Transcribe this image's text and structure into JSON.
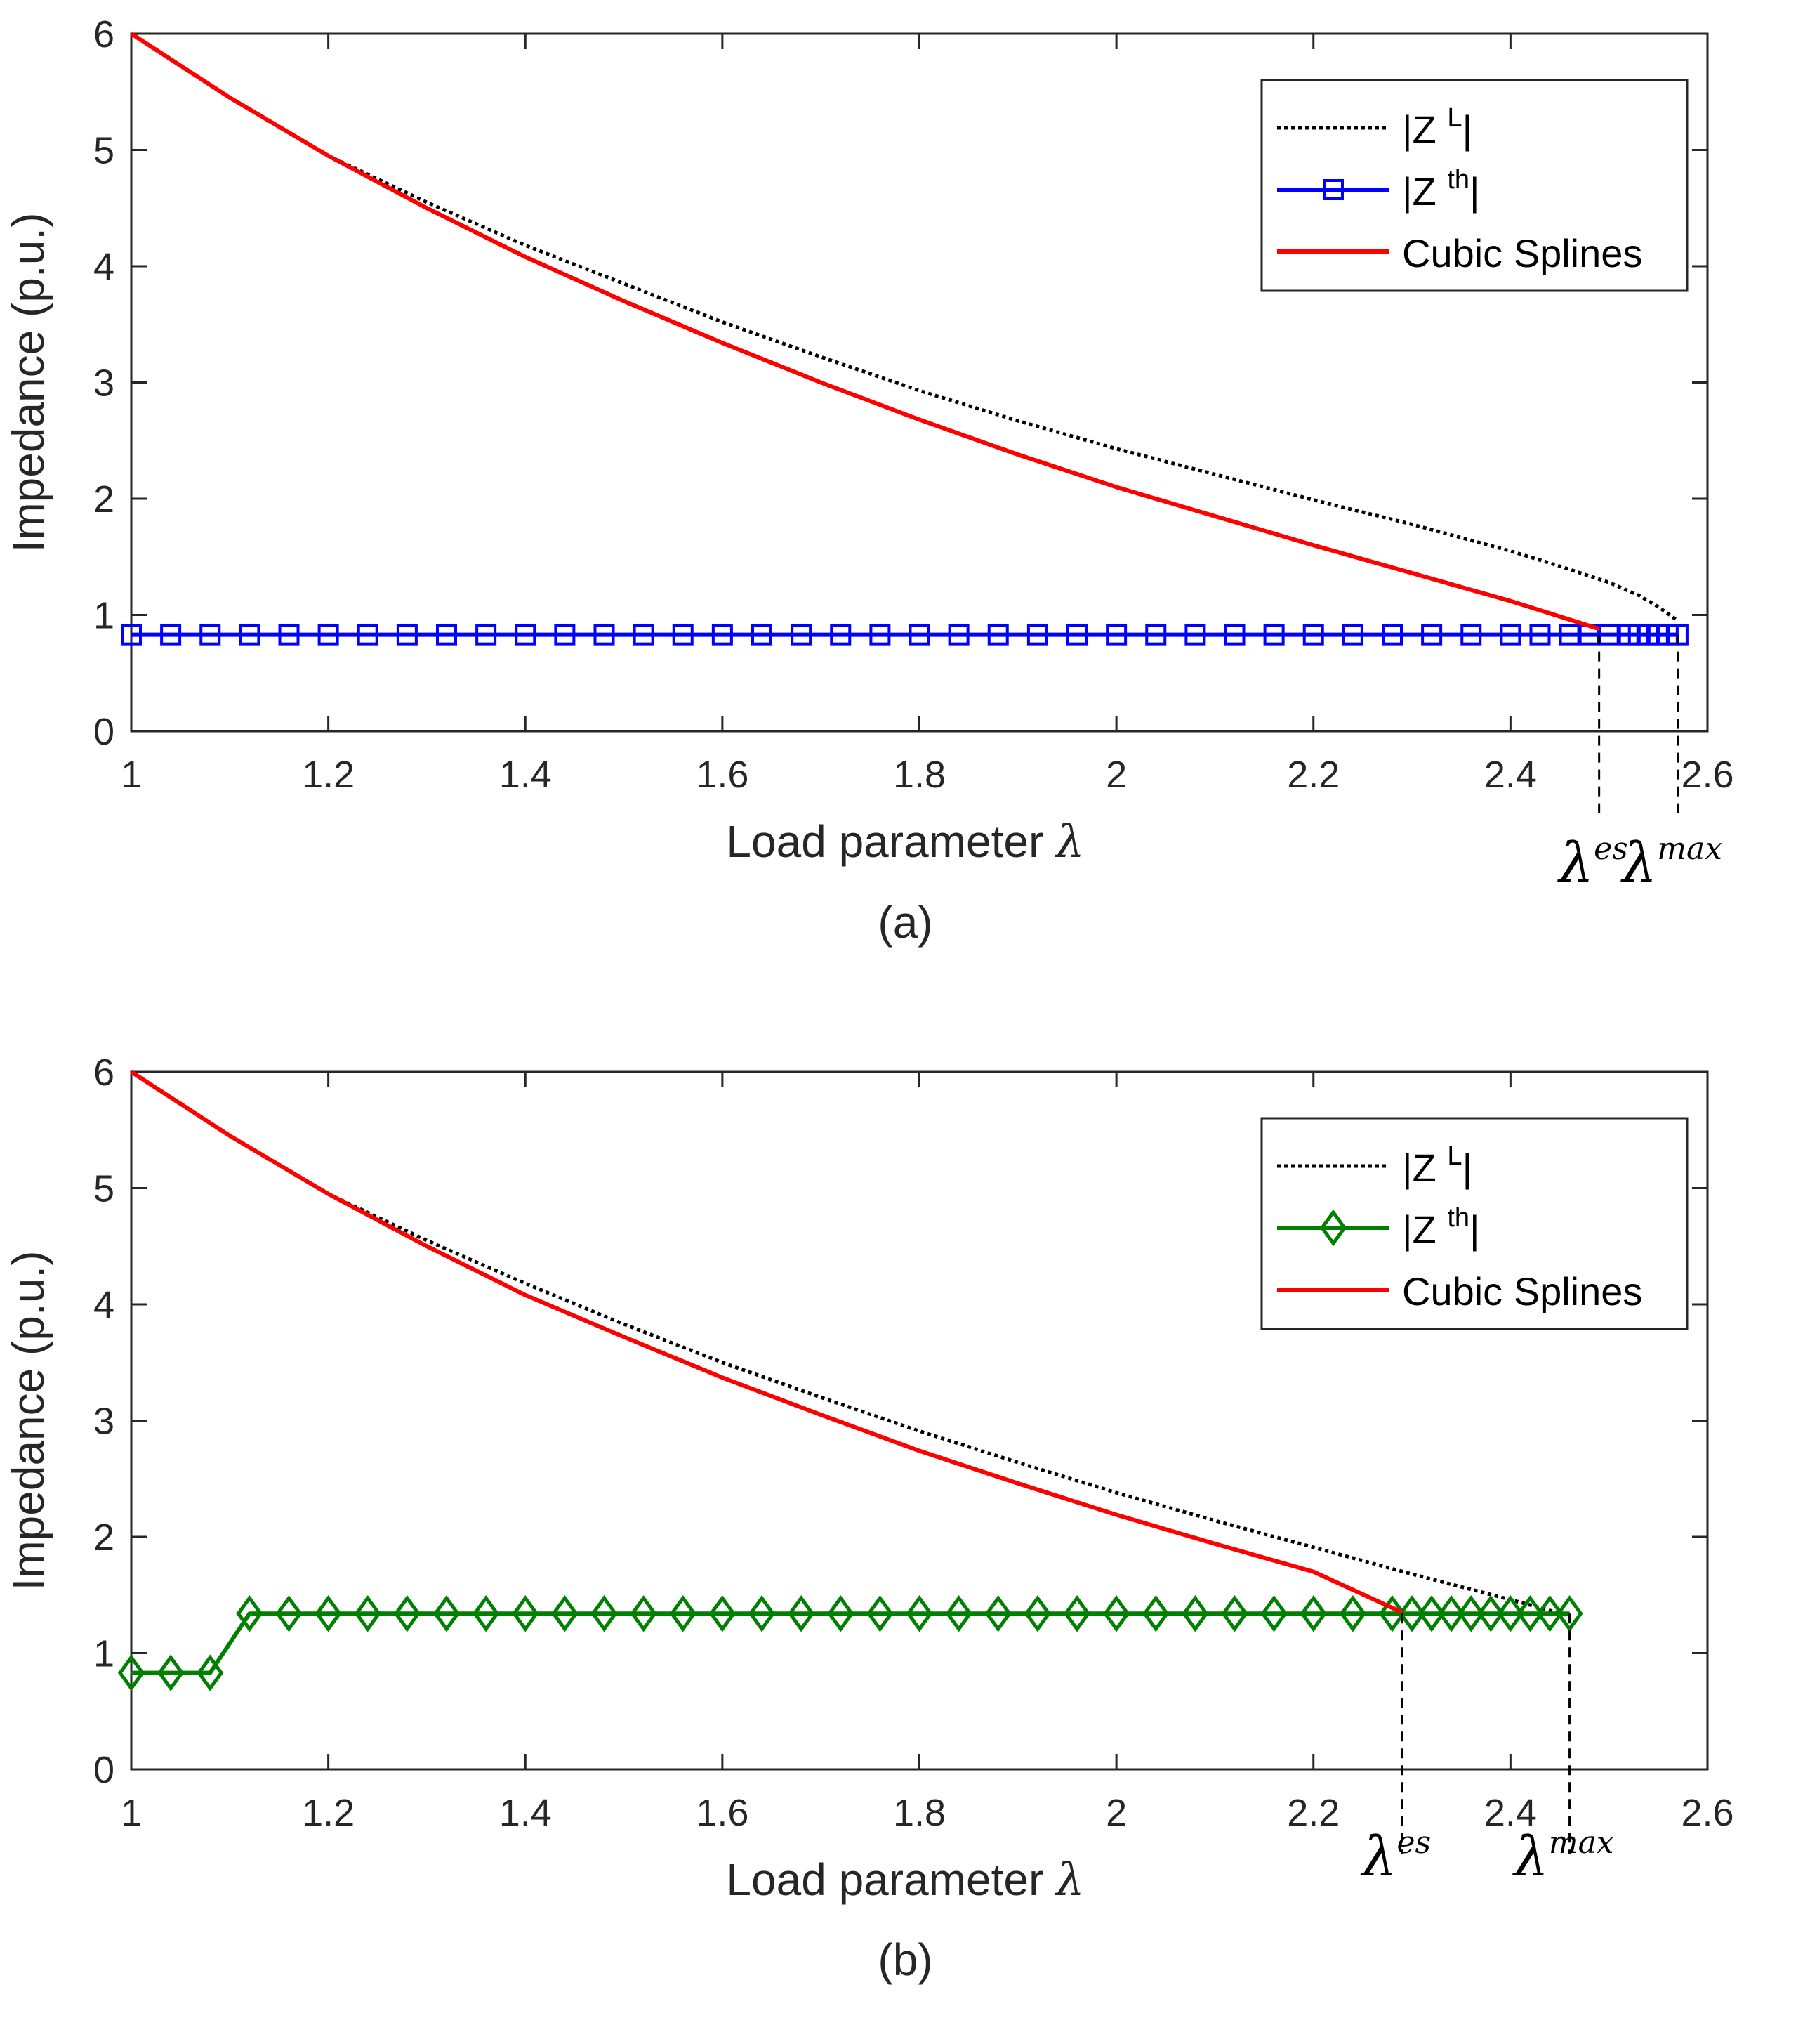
{
  "chart_data": [
    {
      "panel": "(a)",
      "type": "line",
      "caption": "(a)",
      "xlabel": "Load parameter",
      "xlabel_symbol": "λ",
      "ylabel": "Impedance (p.u.)",
      "xlim": [
        1,
        2.6
      ],
      "ylim": [
        0,
        6
      ],
      "xticks": [
        1,
        1.2,
        1.4,
        1.6,
        1.8,
        2,
        2.2,
        2.4,
        2.6
      ],
      "xtick_labels": [
        "1",
        "1.2",
        "1.4",
        "1.6",
        "1.8",
        "2",
        "2.2",
        "2.4",
        "2.6"
      ],
      "yticks": [
        0,
        1,
        2,
        3,
        4,
        5,
        6
      ],
      "ytick_labels": [
        "0",
        "1",
        "2",
        "3",
        "4",
        "5",
        "6"
      ],
      "legend_position": "top-right",
      "grid": false,
      "series": [
        {
          "name": "|Z L|",
          "legend": {
            "base": "|Z",
            "sup": "L",
            "close": "|"
          },
          "style": "dotted",
          "color": "#000000",
          "x": [
            1,
            1.1,
            1.2,
            1.3,
            1.4,
            1.5,
            1.6,
            1.7,
            1.8,
            1.9,
            2.0,
            2.1,
            2.2,
            2.3,
            2.4,
            2.45,
            2.5,
            2.53,
            2.55,
            2.57
          ],
          "y": [
            6.0,
            5.45,
            4.95,
            4.55,
            4.18,
            3.85,
            3.52,
            3.22,
            2.93,
            2.67,
            2.43,
            2.21,
            1.99,
            1.78,
            1.55,
            1.42,
            1.28,
            1.17,
            1.07,
            0.95
          ]
        },
        {
          "name": "|Z th|",
          "legend": {
            "base": "|Z",
            "sup": "th",
            "close": "|"
          },
          "style": "solid",
          "marker": "square",
          "color": "#0000ff",
          "x": [
            1,
            1.04,
            1.08,
            1.12,
            1.16,
            1.2,
            1.24,
            1.28,
            1.32,
            1.36,
            1.4,
            1.44,
            1.48,
            1.52,
            1.56,
            1.6,
            1.64,
            1.68,
            1.72,
            1.76,
            1.8,
            1.84,
            1.88,
            1.92,
            1.96,
            2.0,
            2.04,
            2.08,
            2.12,
            2.16,
            2.2,
            2.24,
            2.28,
            2.32,
            2.36,
            2.4,
            2.43,
            2.46,
            2.48,
            2.5,
            2.52,
            2.53,
            2.54,
            2.55,
            2.56,
            2.57
          ],
          "y": [
            0.83,
            0.83,
            0.83,
            0.83,
            0.83,
            0.83,
            0.83,
            0.83,
            0.83,
            0.83,
            0.83,
            0.83,
            0.83,
            0.83,
            0.83,
            0.83,
            0.83,
            0.83,
            0.83,
            0.83,
            0.83,
            0.83,
            0.83,
            0.83,
            0.83,
            0.83,
            0.83,
            0.83,
            0.83,
            0.83,
            0.83,
            0.83,
            0.83,
            0.83,
            0.83,
            0.83,
            0.83,
            0.83,
            0.83,
            0.83,
            0.83,
            0.83,
            0.83,
            0.83,
            0.83,
            0.83
          ]
        },
        {
          "name": "Cubic Splines",
          "legend": {
            "base": "Cubic Splines",
            "sup": "",
            "close": ""
          },
          "style": "solid",
          "color": "#ff0000",
          "x": [
            1,
            1.1,
            1.2,
            1.3,
            1.4,
            1.5,
            1.6,
            1.7,
            1.8,
            1.9,
            2.0,
            2.1,
            2.2,
            2.3,
            2.4,
            2.49
          ],
          "y": [
            6.0,
            5.45,
            4.95,
            4.5,
            4.08,
            3.7,
            3.34,
            3.0,
            2.68,
            2.38,
            2.1,
            1.85,
            1.6,
            1.36,
            1.12,
            0.88
          ]
        }
      ],
      "annotations": [
        {
          "symbol": "λ",
          "sup": "es",
          "sup_style": "italic",
          "x": 2.49
        },
        {
          "symbol": "λ",
          "sup": "max",
          "sup_style": "upright",
          "x": 2.57
        }
      ]
    },
    {
      "panel": "(b)",
      "type": "line",
      "caption": "(b)",
      "xlabel": "Load parameter",
      "xlabel_symbol": "λ",
      "ylabel": "Impedance (p.u.)",
      "xlim": [
        1,
        2.6
      ],
      "ylim": [
        0,
        6
      ],
      "xticks": [
        1,
        1.2,
        1.4,
        1.6,
        1.8,
        2,
        2.2,
        2.4,
        2.6
      ],
      "xtick_labels": [
        "1",
        "1.2",
        "1.4",
        "1.6",
        "1.8",
        "2",
        "2.2",
        "2.4",
        "2.6"
      ],
      "yticks": [
        0,
        1,
        2,
        3,
        4,
        5,
        6
      ],
      "ytick_labels": [
        "0",
        "1",
        "2",
        "3",
        "4",
        "5",
        "6"
      ],
      "legend_position": "top-right",
      "grid": false,
      "series": [
        {
          "name": "|Z L|",
          "legend": {
            "base": "|Z",
            "sup": "L",
            "close": "|"
          },
          "style": "dotted",
          "color": "#000000",
          "x": [
            1,
            1.1,
            1.2,
            1.3,
            1.4,
            1.5,
            1.6,
            1.7,
            1.8,
            1.9,
            2.0,
            2.1,
            2.2,
            2.3,
            2.35,
            2.4,
            2.43,
            2.46
          ],
          "y": [
            6.0,
            5.45,
            4.95,
            4.55,
            4.18,
            3.83,
            3.5,
            3.2,
            2.91,
            2.64,
            2.38,
            2.14,
            1.91,
            1.68,
            1.57,
            1.46,
            1.39,
            1.32
          ]
        },
        {
          "name": "|Z th|",
          "legend": {
            "base": "|Z",
            "sup": "th",
            "close": "|"
          },
          "style": "solid",
          "marker": "diamond",
          "color": "#008000",
          "x": [
            1,
            1.04,
            1.08,
            1.12,
            1.16,
            1.2,
            1.24,
            1.28,
            1.32,
            1.36,
            1.4,
            1.44,
            1.48,
            1.52,
            1.56,
            1.6,
            1.64,
            1.68,
            1.72,
            1.76,
            1.8,
            1.84,
            1.88,
            1.92,
            1.96,
            2.0,
            2.04,
            2.08,
            2.12,
            2.16,
            2.2,
            2.24,
            2.28,
            2.3,
            2.32,
            2.34,
            2.36,
            2.38,
            2.4,
            2.42,
            2.44,
            2.46
          ],
          "y": [
            0.83,
            0.83,
            0.83,
            1.34,
            1.34,
            1.34,
            1.34,
            1.34,
            1.34,
            1.34,
            1.34,
            1.34,
            1.34,
            1.34,
            1.34,
            1.34,
            1.34,
            1.34,
            1.34,
            1.34,
            1.34,
            1.34,
            1.34,
            1.34,
            1.34,
            1.34,
            1.34,
            1.34,
            1.34,
            1.34,
            1.34,
            1.34,
            1.34,
            1.34,
            1.34,
            1.34,
            1.34,
            1.34,
            1.34,
            1.34,
            1.34,
            1.34
          ]
        },
        {
          "name": "Cubic Splines",
          "legend": {
            "base": "Cubic Splines",
            "sup": "",
            "close": ""
          },
          "style": "solid",
          "color": "#ff0000",
          "x": [
            1,
            1.1,
            1.2,
            1.3,
            1.4,
            1.5,
            1.6,
            1.7,
            1.8,
            1.9,
            2.0,
            2.1,
            2.2,
            2.29
          ],
          "y": [
            6.0,
            5.45,
            4.95,
            4.5,
            4.08,
            3.72,
            3.37,
            3.05,
            2.74,
            2.46,
            2.19,
            1.94,
            1.7,
            1.35
          ]
        }
      ],
      "annotations": [
        {
          "symbol": "λ",
          "sup": "es",
          "sup_style": "italic",
          "x": 2.29
        },
        {
          "symbol": "λ",
          "sup": "max",
          "sup_style": "upright",
          "x": 2.46
        }
      ]
    }
  ]
}
